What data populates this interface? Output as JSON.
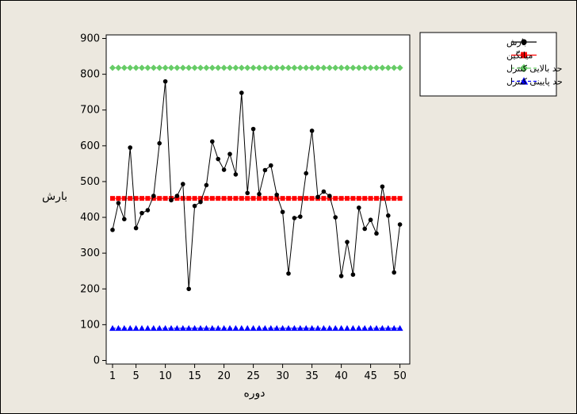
{
  "chart_data": {
    "type": "line",
    "title": "",
    "xlabel": "دوره",
    "ylabel": "بارش",
    "xlim": [
      0.5,
      50.5
    ],
    "ylim": [
      -10,
      910
    ],
    "x_ticks": [
      1,
      5,
      10,
      15,
      20,
      25,
      30,
      35,
      40,
      45,
      50
    ],
    "y_ticks": [
      0,
      100,
      200,
      300,
      400,
      500,
      600,
      700,
      800,
      900
    ],
    "grid": false,
    "legend_position": "top-right, outside plot",
    "series": [
      {
        "name": "بارش",
        "color": "#000000",
        "marker": "circle",
        "line": "solid",
        "x": [
          1,
          2,
          3,
          4,
          5,
          6,
          7,
          8,
          9,
          10,
          11,
          12,
          13,
          14,
          15,
          16,
          17,
          18,
          19,
          20,
          21,
          22,
          23,
          24,
          25,
          26,
          27,
          28,
          29,
          30,
          31,
          32,
          33,
          34,
          35,
          36,
          37,
          38,
          39,
          40,
          41,
          42,
          43,
          44,
          45,
          46,
          47,
          48,
          49,
          50
        ],
        "values": [
          365,
          440,
          395,
          595,
          370,
          412,
          420,
          460,
          607,
          780,
          448,
          460,
          493,
          200,
          432,
          443,
          490,
          612,
          563,
          533,
          577,
          520,
          748,
          468,
          647,
          465,
          532,
          545,
          463,
          415,
          243,
          398,
          402,
          523,
          642,
          457,
          472,
          460,
          400,
          236,
          331,
          240,
          427,
          368,
          393,
          355,
          486,
          405,
          246,
          380
        ]
      },
      {
        "name": "میانگین",
        "color": "#ff0000",
        "marker": "square",
        "line": "solid",
        "constant": 453
      },
      {
        "name": "حد بالایی کنترل",
        "color": "#66cc66",
        "marker": "diamond",
        "line": "dashed",
        "constant": 818
      },
      {
        "name": "حد پایینی کنترل",
        "color": "#0000ff",
        "marker": "triangle",
        "line": "dashed",
        "constant": 90
      }
    ]
  }
}
